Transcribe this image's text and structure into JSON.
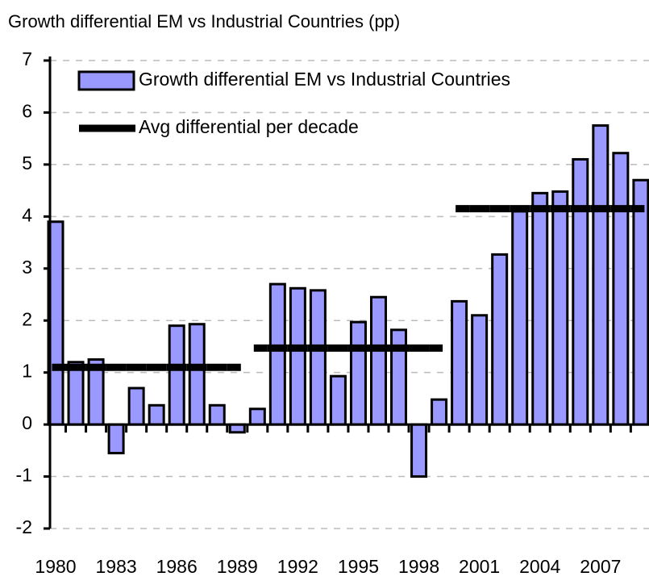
{
  "chart_data": {
    "type": "bar",
    "title": "Growth differential EM vs Industrial Countries (pp)",
    "categories": [
      "1980",
      null,
      null,
      "1983",
      null,
      null,
      "1986",
      null,
      null,
      "1989",
      null,
      null,
      "1992",
      null,
      null,
      "1995",
      null,
      null,
      "1998",
      null,
      null,
      "2001",
      null,
      null,
      "2004",
      null,
      null,
      "2007",
      null,
      null
    ],
    "series": [
      {
        "name": "Growth differential EM vs Industrial Countries",
        "color": "#9999ff",
        "kind": "bar",
        "values": [
          3.9,
          1.2,
          1.25,
          -0.55,
          0.7,
          0.37,
          1.9,
          1.93,
          0.37,
          -0.15,
          0.3,
          2.7,
          2.62,
          2.58,
          0.93,
          1.97,
          2.45,
          1.82,
          -1.0,
          0.48,
          2.37,
          2.1,
          3.27,
          4.1,
          4.45,
          4.48,
          5.1,
          5.75,
          5.22,
          4.7
        ]
      },
      {
        "name": "Avg differential per decade",
        "color": "#000000",
        "kind": "step",
        "values": [
          1.1,
          1.1,
          1.1,
          1.1,
          1.1,
          1.1,
          1.1,
          1.1,
          1.1,
          1.1,
          1.47,
          1.47,
          1.47,
          1.47,
          1.47,
          1.47,
          1.47,
          1.47,
          1.47,
          1.47,
          4.15,
          4.15,
          4.15,
          4.15,
          4.15,
          4.15,
          4.15,
          4.15,
          4.15,
          4.15
        ]
      }
    ],
    "ylim": [
      -2,
      7
    ],
    "yticks": [
      -2,
      -1,
      0,
      1,
      2,
      3,
      4,
      5,
      6,
      7
    ],
    "grid": true
  }
}
